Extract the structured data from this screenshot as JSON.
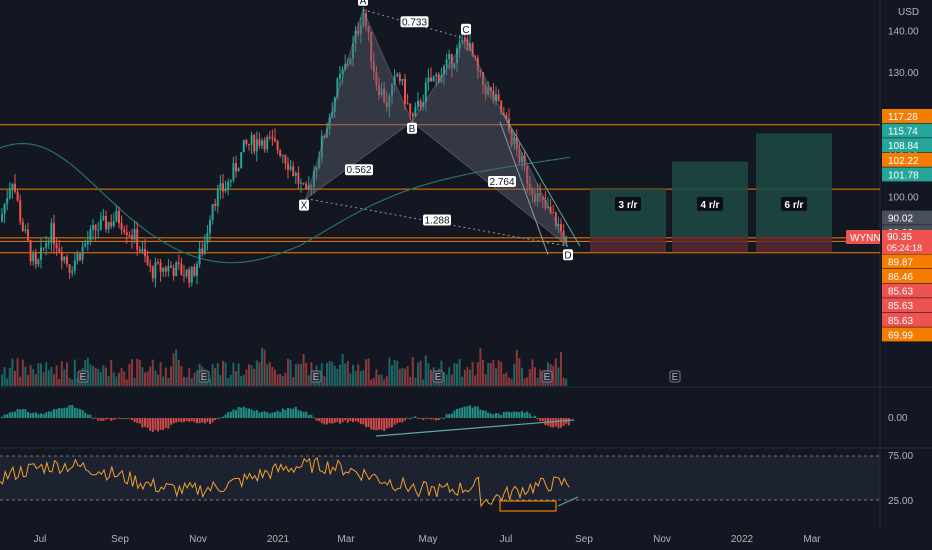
{
  "symbol": "WYNN",
  "currency": "USD",
  "countdown": "05:24:18",
  "colors": {
    "background": "#131722",
    "up": "#26a69a",
    "down": "#ef5350",
    "orange": "#f57c00",
    "ma": "#2a6f66",
    "pattern_fill": "#5d6270",
    "rr_profit": "#1f4a45",
    "rr_loss": "#5a2a2e",
    "rsi": "#f0a030",
    "text": "#b2b5be"
  },
  "chart_data": {
    "type": "candlestick",
    "panes": [
      "price",
      "oscillator",
      "rsi"
    ],
    "price_axis": {
      "ticks": [
        {
          "value": 140,
          "label": "140.00"
        },
        {
          "value": 130,
          "label": "130.00"
        },
        {
          "value": 110,
          "label": "110.00"
        },
        {
          "value": 100,
          "label": "100.00"
        }
      ]
    },
    "x_axis": {
      "ticks": [
        "Jul",
        "Sep",
        "Nov",
        "2021",
        "Mar",
        "May",
        "Jul",
        "Sep",
        "Nov",
        "2022",
        "Mar"
      ]
    },
    "horizontal_levels": [
      117.28,
      101.78,
      90.02,
      86.46
    ],
    "price_labels": [
      {
        "text": "117.28",
        "kind": "orange"
      },
      {
        "text": "115.74",
        "kind": "green"
      },
      {
        "text": "108.84",
        "kind": "green"
      },
      {
        "text": "102.22",
        "kind": "orange"
      },
      {
        "text": "101.78",
        "kind": "green"
      },
      {
        "text": "90.35",
        "kind": "red"
      },
      {
        "text": "90.02",
        "kind": "gray"
      },
      {
        "text": "90.02",
        "kind": "gray"
      },
      {
        "text": "90.02",
        "kind": "gray"
      },
      {
        "text": "89.87",
        "kind": "orange"
      },
      {
        "text": "86.46",
        "kind": "orange"
      },
      {
        "text": "85.63",
        "kind": "red"
      },
      {
        "text": "85.63",
        "kind": "red"
      },
      {
        "text": "85.63",
        "kind": "red"
      },
      {
        "text": "69.99",
        "kind": "orange"
      }
    ],
    "harmonic_pattern": {
      "points": [
        {
          "label": "X",
          "price": 99.5
        },
        {
          "label": "A",
          "price": 145.0
        },
        {
          "label": "B",
          "price": 118.0
        },
        {
          "label": "C",
          "price": 138.0
        },
        {
          "label": "D",
          "price": 88.0
        }
      ],
      "ratios": [
        "0.733",
        "0.562",
        "2.764",
        "1.288"
      ]
    },
    "risk_reward": [
      "3 r/r",
      "4 r/r",
      "6 r/r"
    ],
    "events": [
      "E",
      "E",
      "E",
      "E",
      "E",
      "E"
    ],
    "oscillator_axis": {
      "ticks": [
        "0.00"
      ]
    },
    "rsi_axis": {
      "ticks": [
        "75.00",
        "25.00"
      ]
    }
  }
}
